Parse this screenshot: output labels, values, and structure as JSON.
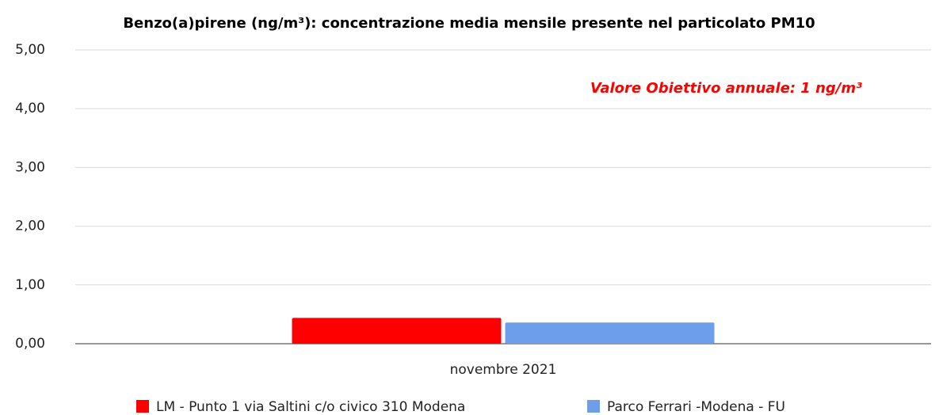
{
  "chart_data": {
    "type": "bar",
    "title": "Benzo(a)pirene (ng/m³): concentrazione media mensile presente nel particolato PM10",
    "annotation": "Valore Obiettivo annuale: 1 ng/m³",
    "categories": [
      "novembre 2021"
    ],
    "series": [
      {
        "name": "LM - Punto 1 via Saltini c/o civico 310 Modena",
        "color": "#ff0000",
        "values": [
          0.44
        ]
      },
      {
        "name": "Parco Ferrari -Modena - FU",
        "color": "#6d9eeb",
        "values": [
          0.36
        ]
      }
    ],
    "ylim": [
      0,
      5
    ],
    "yticks": [
      {
        "value": 0,
        "label": "0,00"
      },
      {
        "value": 1,
        "label": "1,00"
      },
      {
        "value": 2,
        "label": "2,00"
      },
      {
        "value": 3,
        "label": "3,00"
      },
      {
        "value": 4,
        "label": "4,00"
      },
      {
        "value": 5,
        "label": "5,00"
      }
    ],
    "grid": true
  }
}
